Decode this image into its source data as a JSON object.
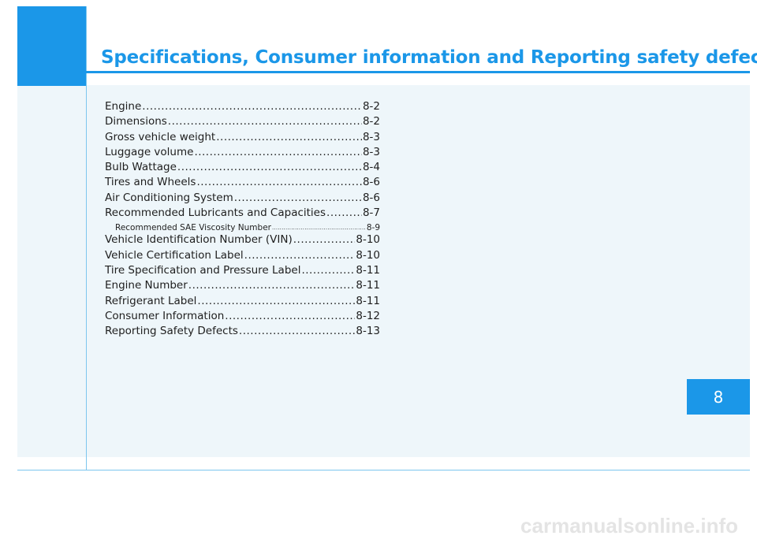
{
  "header": {
    "title": "Specifications, Consumer information and Reporting safety defects"
  },
  "toc": {
    "items": [
      {
        "label": "Engine",
        "page": "8-2",
        "sub": false
      },
      {
        "label": "Dimensions",
        "page": "8-2",
        "sub": false
      },
      {
        "label": "Gross vehicle weight",
        "page": "8-3",
        "sub": false
      },
      {
        "label": "Luggage volume",
        "page": "8-3",
        "sub": false
      },
      {
        "label": "Bulb Wattage",
        "page": "8-4",
        "sub": false
      },
      {
        "label": "Tires and Wheels",
        "page": "8-6",
        "sub": false
      },
      {
        "label": "Air Conditioning System",
        "page": "8-6",
        "sub": false
      },
      {
        "label": "Recommended Lubricants and Capacities",
        "page": "8-7",
        "sub": false
      },
      {
        "label": "Recommended SAE Viscosity Number",
        "page": "8-9",
        "sub": true
      },
      {
        "label": "Vehicle Identification Number (VIN)",
        "page": "8-10",
        "sub": false
      },
      {
        "label": "Vehicle Certification Label",
        "page": "8-10",
        "sub": false
      },
      {
        "label": "Tire Specification and Pressure Label",
        "page": "8-11",
        "sub": false
      },
      {
        "label": "Engine Number",
        "page": "8-11",
        "sub": false
      },
      {
        "label": "Refrigerant Label",
        "page": "8-11",
        "sub": false
      },
      {
        "label": "Consumer Information",
        "page": "8-12",
        "sub": false
      },
      {
        "label": "Reporting Safety Defects",
        "page": "8-13",
        "sub": false
      }
    ]
  },
  "chapter_tab": {
    "number": "8"
  },
  "watermark": {
    "text": "carmanualsonline.info"
  },
  "colors": {
    "accent": "#1b97e8",
    "content_background": "#eef6fa",
    "text": "#1e1e1e"
  }
}
